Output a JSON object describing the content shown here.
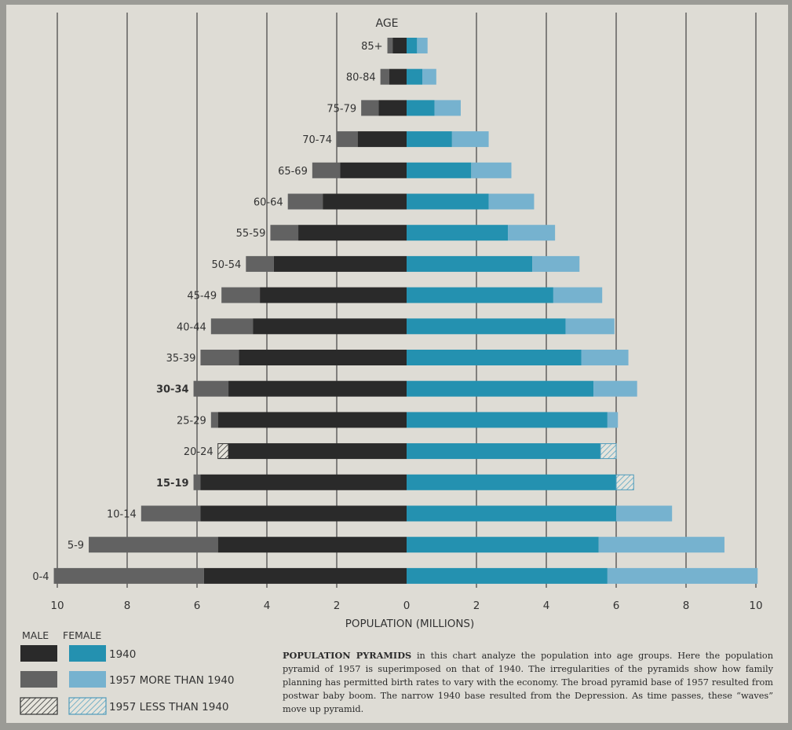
{
  "chart_data": {
    "type": "bar",
    "orientation": "horizontal",
    "y_header": "AGE",
    "xlabel": "POPULATION (MILLIONS)",
    "x_ticks": [
      "10",
      "8",
      "6",
      "4",
      "2",
      "0",
      "2",
      "4",
      "6",
      "8",
      "10"
    ],
    "xlim": [
      -10,
      10
    ],
    "grid": true,
    "categories": [
      "85+",
      "80-84",
      "75-79",
      "70-74",
      "65-69",
      "60-64",
      "55-59",
      "50-54",
      "45-49",
      "40-44",
      "35-39",
      "30-34",
      "25-29",
      "20-24",
      "15-19",
      "10-14",
      "5-9",
      "0-4"
    ],
    "bold_categories": [
      "30-34",
      "15-19"
    ],
    "series": [
      {
        "group": "male",
        "year": "1940",
        "values": [
          0.4,
          0.5,
          0.8,
          1.4,
          1.9,
          2.4,
          3.1,
          3.8,
          4.2,
          4.4,
          4.8,
          5.1,
          5.4,
          5.4,
          5.9,
          5.9,
          5.4,
          5.8
        ]
      },
      {
        "group": "male",
        "year": "1957",
        "values": [
          0.55,
          0.75,
          1.3,
          2.0,
          2.7,
          3.4,
          3.9,
          4.6,
          5.3,
          5.6,
          5.9,
          6.1,
          5.6,
          5.1,
          6.1,
          7.6,
          9.1,
          10.1
        ]
      },
      {
        "group": "female",
        "year": "1940",
        "values": [
          0.3,
          0.45,
          0.8,
          1.3,
          1.85,
          2.35,
          2.9,
          3.6,
          4.2,
          4.55,
          5.0,
          5.35,
          5.75,
          6.0,
          6.5,
          6.0,
          5.5,
          5.75
        ]
      },
      {
        "group": "female",
        "year": "1957",
        "values": [
          0.6,
          0.85,
          1.55,
          2.35,
          3.0,
          3.65,
          4.25,
          4.95,
          5.6,
          5.95,
          6.35,
          6.6,
          6.05,
          5.55,
          6.0,
          7.6,
          9.1,
          10.05
        ]
      }
    ],
    "legend": {
      "headers": [
        "MALE",
        "FEMALE"
      ],
      "entries": [
        "1940",
        "1957 MORE THAN 1940",
        "1957 LESS THAN 1940"
      ]
    },
    "colors": {
      "male_1940": "#2a2a2a",
      "male_1957_more": "#626262",
      "female_1940": "#2491b0",
      "female_1957_more": "#76b2cf",
      "gridline": "#333333"
    }
  },
  "caption": {
    "heading": "POPULATION PYRAMIDS",
    "body": "in this chart analyze the population into age groups. Here the population pyramid of 1957 is superimposed on that of 1940. The irregularities of the pyramids show how family planning has permitted birth rates to vary with the economy. The broad pyramid base of 1957 resulted from postwar baby boom. The narrow 1940 base resulted from the Depression. As time passes, these “waves” move up pyramid."
  }
}
